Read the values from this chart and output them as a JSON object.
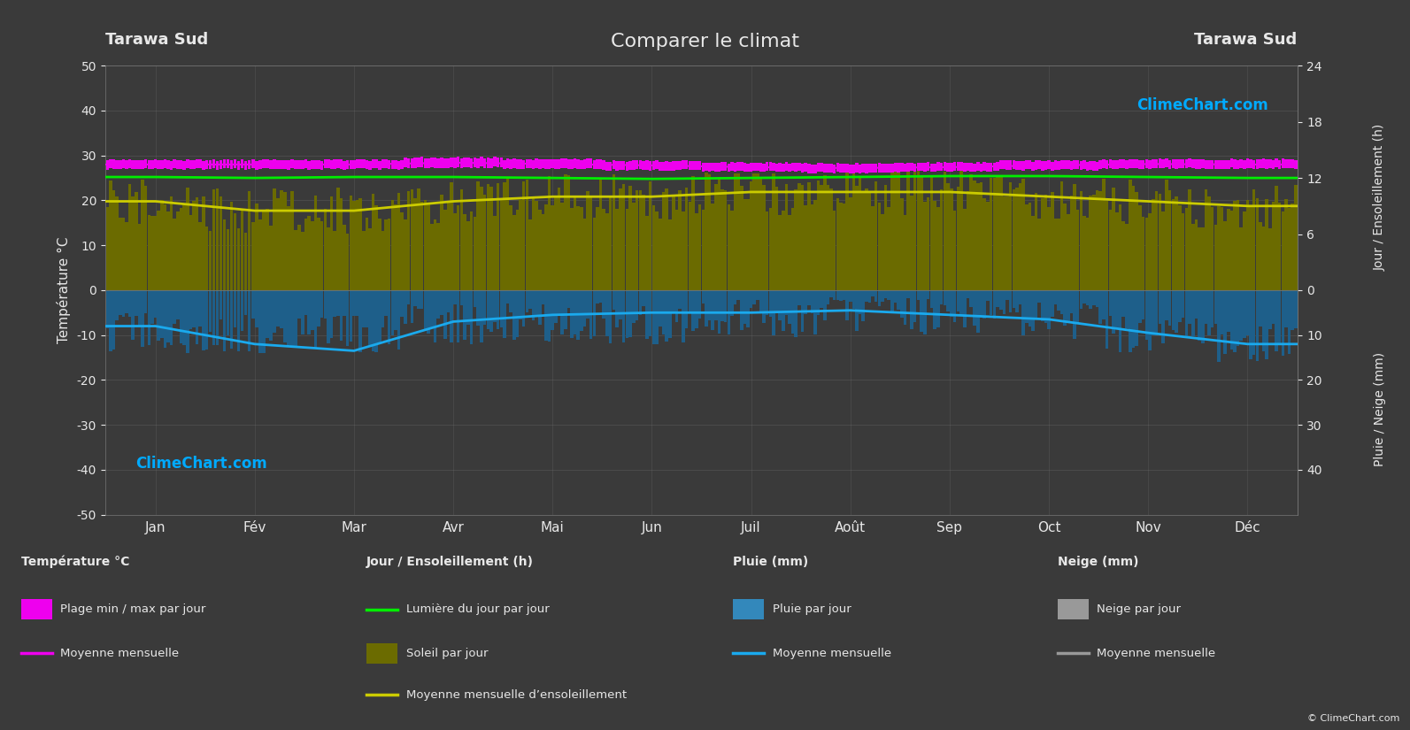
{
  "title": "Comparer le climat",
  "location_left": "Tarawa Sud",
  "location_right": "Tarawa Sud",
  "background_color": "#3a3a3a",
  "grid_color": "#777777",
  "text_color": "#e8e8e8",
  "months": [
    "Jan",
    "Fév",
    "Mar",
    "Avr",
    "Mai",
    "Jun",
    "Juil",
    "Août",
    "Sep",
    "Oct",
    "Nov",
    "Déc"
  ],
  "temp_ylim": [
    -50,
    50
  ],
  "temp_max_daily": [
    29.0,
    29.0,
    29.0,
    29.5,
    29.2,
    28.8,
    28.4,
    28.2,
    28.4,
    28.8,
    29.1,
    29.1
  ],
  "temp_min_daily": [
    27.0,
    27.0,
    27.0,
    27.3,
    27.1,
    26.8,
    26.5,
    26.2,
    26.5,
    26.8,
    27.1,
    27.1
  ],
  "temp_monthly_mean": [
    28.0,
    28.0,
    28.0,
    28.4,
    28.1,
    27.8,
    27.4,
    27.2,
    27.4,
    27.8,
    28.1,
    28.0
  ],
  "daylight_hours": [
    12.1,
    12.0,
    12.1,
    12.1,
    12.0,
    11.9,
    12.0,
    12.1,
    12.2,
    12.2,
    12.1,
    12.0
  ],
  "sunshine_hours_daily_mean": [
    9.5,
    8.5,
    8.5,
    9.5,
    10.0,
    10.0,
    10.5,
    10.5,
    10.5,
    10.0,
    9.5,
    9.0
  ],
  "rain_daily_mm_mean": [
    8.0,
    8.5,
    8.0,
    6.0,
    5.5,
    6.0,
    5.0,
    4.0,
    4.5,
    5.0,
    8.0,
    10.0
  ],
  "rain_monthly_mean_mm": [
    8.0,
    12.0,
    13.5,
    7.0,
    5.5,
    5.0,
    5.0,
    4.5,
    5.5,
    6.5,
    9.5,
    12.0
  ],
  "magenta_color": "#ee00ee",
  "green_color": "#00ee00",
  "yellow_color": "#cccc00",
  "olive_color": "#6b6b00",
  "blue_bar_color": "#1e5f8a",
  "blue_line_color": "#1aaaee",
  "watermark_color": "#00aaff",
  "ylabel_left": "Température °C",
  "ylabel_right_top": "Jour / Ensoleillement (h)",
  "ylabel_right_bottom": "Pluie / Neige (mm)",
  "watermark": "ClimeChart.com",
  "copyright": "© ClimeChart.com",
  "sun_scale": 2.0833,
  "legend_headers": [
    "Température °C",
    "Jour / Ensoleillement (h)",
    "Pluie (mm)",
    "Neige (mm)"
  ],
  "legend_row1": [
    "Plage min / max par jour",
    "Lumière du jour par jour",
    "Pluie par jour",
    "Neige par jour"
  ],
  "legend_row2": [
    "Moyenne mensuelle",
    "Soleil par jour",
    "Moyenne mensuelle",
    "Moyenne mensuelle"
  ],
  "legend_row3_text": "Moyenne mensuelle d’ensoleillement"
}
